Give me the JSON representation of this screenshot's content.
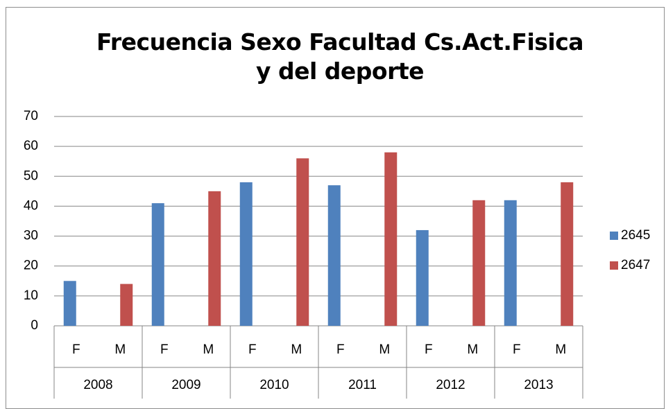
{
  "chart_data": {
    "type": "bar",
    "title": "Frecuencia Sexo Facultad Cs.Act.Fisica y del deporte",
    "categories": [
      "F",
      "M",
      "F",
      "M",
      "F",
      "M",
      "F",
      "M",
      "F",
      "M",
      "F",
      "M"
    ],
    "category_groups": [
      "2008",
      "2009",
      "2010",
      "2011",
      "2012",
      "2013"
    ],
    "series": [
      {
        "name": "2645",
        "color": "#4f81bd",
        "values": [
          15,
          null,
          41,
          null,
          48,
          null,
          47,
          null,
          32,
          null,
          42,
          null
        ]
      },
      {
        "name": "2647",
        "color": "#c0504d",
        "values": [
          null,
          14,
          null,
          45,
          null,
          56,
          null,
          58,
          null,
          42,
          null,
          48
        ]
      }
    ],
    "ylim": [
      0,
      70
    ],
    "yticks": [
      0,
      10,
      20,
      30,
      40,
      50,
      60,
      70
    ],
    "grid": true,
    "legend": "right"
  }
}
